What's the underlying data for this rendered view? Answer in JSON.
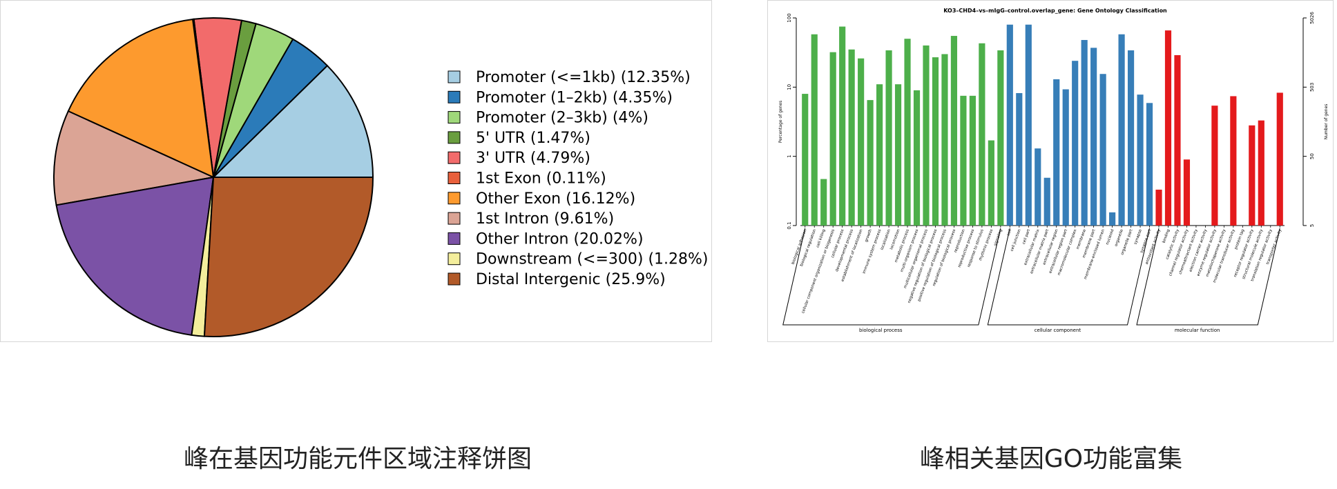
{
  "chart_data": [
    {
      "type": "pie",
      "title": "",
      "legend_position": "right",
      "slices": [
        {
          "label": "Promoter (<=1kb) (12.35%)",
          "value": 12.35,
          "color": "#a6cee3"
        },
        {
          "label": "Promoter (1–2kb) (4.35%)",
          "value": 4.35,
          "color": "#2b7bb9"
        },
        {
          "label": "Promoter (2–3kb) (4%)",
          "value": 4,
          "color": "#9fd87a"
        },
        {
          "label": "5' UTR (1.47%)",
          "value": 1.47,
          "color": "#6a9e3f"
        },
        {
          "label": "3' UTR (4.79%)",
          "value": 4.79,
          "color": "#f26b6b"
        },
        {
          "label": "1st Exon (0.11%)",
          "value": 0.11,
          "color": "#e8603c"
        },
        {
          "label": "Other Exon (16.12%)",
          "value": 16.12,
          "color": "#fd9a2e"
        },
        {
          "label": "1st Intron (9.61%)",
          "value": 9.61,
          "color": "#dba495"
        },
        {
          "label": "Other Intron (20.02%)",
          "value": 20.02,
          "color": "#7b52a6"
        },
        {
          "label": "Downstream (<=300) (1.28%)",
          "value": 1.28,
          "color": "#f4ee9c"
        },
        {
          "label": "Distal Intergenic (25.9%)",
          "value": 25.9,
          "color": "#b25a29"
        }
      ]
    },
    {
      "type": "bar",
      "title": "KO3–CHD4–vs–mIgG–control.overlap_gene: Gene Ontology Classification",
      "ylabel": "Percentage of genes",
      "ylabel_right": "Number of genes",
      "yscale": "log",
      "ylim": [
        0.1,
        100
      ],
      "yticks": [
        "100",
        "10",
        "1",
        "0.1"
      ],
      "yticks_right": [
        "5026",
        "503",
        "50",
        "5"
      ],
      "categories": [
        "biological adhesion",
        "biological regulation",
        "cell killing",
        "cellular component organization or biogenesis",
        "cellular process",
        "developmental process",
        "establishment of localization",
        "growth",
        "immune system process",
        "localization",
        "locomotion",
        "metabolic process",
        "multi-organism process",
        "multicellular organismal process",
        "negative regulation of biological process",
        "positive regulation of biological process",
        "regulation of biological process",
        "reproduction",
        "reproductive process",
        "response to stimulus",
        "rhythmic process",
        "signaling",
        "cell",
        "cell junction",
        "cell part",
        "extracellular matrix",
        "extracellular matrix part",
        "extracellular region",
        "extracellular region part",
        "macromolecular complex",
        "membrane",
        "membrane part",
        "membrane-enclosed lumen",
        "nucleoid",
        "organelle",
        "organelle part",
        "synapse",
        "synapse part",
        "antioxidant activity",
        "binding",
        "catalytic activity",
        "channel regulator activity",
        "chemoattractant activity",
        "electron carrier activity",
        "enzyme regulator activity",
        "metallochaperone activity",
        "molecular transducer activity",
        "protein tag",
        "receptor regulator activity",
        "structural molecule activity",
        "translation regulator activity",
        "transporter activity"
      ],
      "values": [
        8,
        58,
        0.47,
        32,
        75,
        35,
        26,
        6.5,
        11,
        34,
        11,
        50,
        9,
        40,
        27,
        30,
        55,
        7.5,
        7.5,
        43,
        1.7,
        34,
        80,
        8.2,
        80,
        1.3,
        0.49,
        13,
        9.3,
        24,
        48,
        37,
        15.5,
        0.155,
        58,
        34,
        7.8,
        5.9,
        0.33,
        66,
        29,
        0.9,
        0,
        0,
        5.4,
        0,
        7.4,
        0,
        2.8,
        3.3,
        0,
        8.3
      ],
      "groups": [
        {
          "name": "biological process",
          "start": 0,
          "end": 21,
          "color": "#4daf4a"
        },
        {
          "name": "cellular component",
          "start": 22,
          "end": 37,
          "color": "#377eb8"
        },
        {
          "name": "molecular function",
          "start": 38,
          "end": 51,
          "color": "#e41a1c"
        }
      ]
    }
  ],
  "captions": {
    "pie": "峰在基因功能元件区域注释饼图",
    "go": "峰相关基因GO功能富集"
  }
}
